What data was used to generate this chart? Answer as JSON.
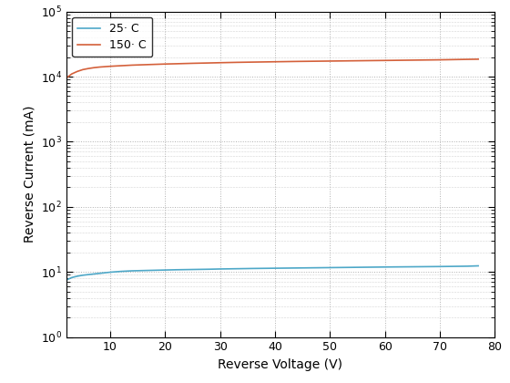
{
  "xlabel": "Reverse Voltage (V)",
  "ylabel": "Reverse Current (mA)",
  "xlim": [
    2,
    80
  ],
  "ylim": [
    1,
    100000.0
  ],
  "legend_labels": [
    "25· C",
    "150· C"
  ],
  "line_colors": [
    "#4ea8c8",
    "#d4603a"
  ],
  "background_color": "#ffffff",
  "grid_color": "#b0b0b0",
  "x_ticks": [
    10,
    20,
    30,
    40,
    50,
    60,
    70,
    80
  ],
  "y_ticks": [
    1,
    10,
    100,
    1000,
    10000,
    100000
  ],
  "curve_25_x": [
    2,
    3,
    4,
    5,
    6,
    7,
    8,
    9,
    10,
    12,
    14,
    16,
    18,
    20,
    22,
    25,
    28,
    30,
    33,
    36,
    40,
    44,
    48,
    52,
    56,
    60,
    65,
    70,
    75,
    77
  ],
  "curve_25_y": [
    7.5,
    8.2,
    8.6,
    8.9,
    9.1,
    9.3,
    9.5,
    9.7,
    9.9,
    10.2,
    10.4,
    10.5,
    10.6,
    10.7,
    10.8,
    10.9,
    11.0,
    11.1,
    11.2,
    11.3,
    11.4,
    11.5,
    11.6,
    11.7,
    11.8,
    11.9,
    12.0,
    12.1,
    12.25,
    12.4
  ],
  "curve_150_x": [
    2,
    3,
    4,
    5,
    6,
    7,
    8,
    9,
    10,
    12,
    14,
    16,
    18,
    20,
    22,
    25,
    28,
    30,
    33,
    36,
    40,
    44,
    48,
    52,
    56,
    60,
    65,
    70,
    75,
    77
  ],
  "curve_150_y": [
    9500,
    11000,
    12000,
    12800,
    13300,
    13700,
    14000,
    14200,
    14400,
    14700,
    15000,
    15200,
    15400,
    15600,
    15750,
    16000,
    16200,
    16350,
    16550,
    16700,
    16900,
    17100,
    17250,
    17400,
    17550,
    17700,
    17900,
    18100,
    18400,
    18500
  ],
  "legend_line_colors": [
    "#4ea8c8",
    "#d4603a"
  ],
  "figsize": [
    5.6,
    4.2
  ],
  "dpi": 100
}
